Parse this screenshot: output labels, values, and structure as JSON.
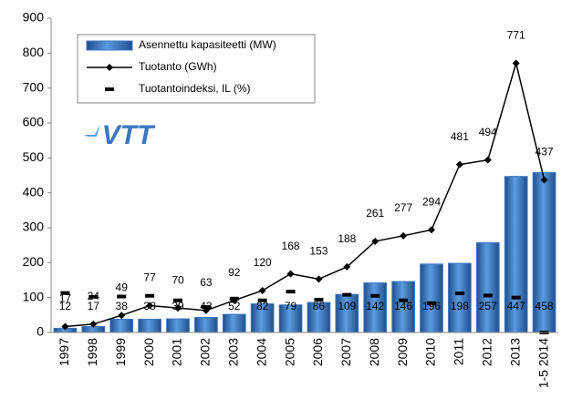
{
  "chart_data": {
    "type": "bar",
    "logo": "VTT",
    "categories": [
      "1997",
      "1998",
      "1999",
      "2000",
      "2001",
      "2002",
      "2003",
      "2004",
      "2005",
      "2006",
      "2007",
      "2008",
      "2009",
      "2010",
      "2011",
      "2012",
      "2013",
      "1-5 2014"
    ],
    "series": [
      {
        "name": "Asennettu kapasiteetti (MW)",
        "type": "bar",
        "color": "#3b78c4",
        "values": [
          12,
          17,
          38,
          38,
          39,
          43,
          52,
          82,
          79,
          86,
          109,
          142,
          146,
          196,
          198,
          257,
          447,
          458
        ]
      },
      {
        "name": "Tuotanto (GWh)",
        "type": "line",
        "color": "#000000",
        "values": [
          17,
          24,
          49,
          77,
          70,
          63,
          92,
          120,
          168,
          153,
          188,
          261,
          277,
          294,
          481,
          494,
          771,
          437
        ]
      },
      {
        "name": "Tuotantoindeksi, IL (%)",
        "type": "dash",
        "color": "#000000",
        "values": [
          113,
          102,
          103,
          105,
          92,
          73,
          97,
          92,
          117,
          94,
          108,
          105,
          92,
          84,
          112,
          106,
          100,
          0
        ]
      }
    ],
    "ylim": [
      0,
      900
    ],
    "yticks": [
      0,
      100,
      200,
      300,
      400,
      500,
      600,
      700,
      800,
      900
    ],
    "grid": false
  }
}
